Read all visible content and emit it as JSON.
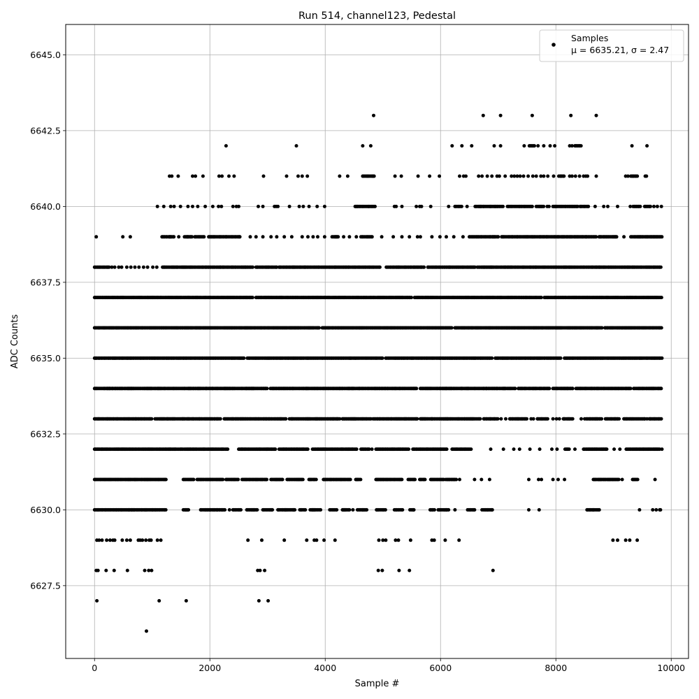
{
  "chart_data": {
    "type": "scatter",
    "title": "Run 514, channel123, Pedestal",
    "xlabel": "Sample #",
    "ylabel": "ADC Counts",
    "xlim": [
      -500,
      10300
    ],
    "ylim": [
      6625.1,
      6646.0
    ],
    "x_ticks": [
      0,
      2000,
      4000,
      6000,
      8000,
      10000
    ],
    "x_tick_labels": [
      "0",
      "2000",
      "4000",
      "6000",
      "8000",
      "10000"
    ],
    "y_ticks": [
      6627.5,
      6630.0,
      6632.5,
      6635.0,
      6637.5,
      6640.0,
      6642.5,
      6645.0
    ],
    "y_tick_labels": [
      "6627.5",
      "6630.0",
      "6632.5",
      "6635.0",
      "6637.5",
      "6640.0",
      "6642.5",
      "6645.0"
    ],
    "grid": true,
    "legend_position": "top-right",
    "n_samples": 9830,
    "series": [
      {
        "name": "Samples",
        "stats_label": "μ = 6635.21, σ = 2.47",
        "color": "#000000",
        "marker": "circle",
        "levels": [
          {
            "y": 6626,
            "x": [
              900
            ]
          },
          {
            "y": 6627,
            "x": [
              40,
              1120,
              1590,
              2850,
              3010
            ]
          },
          {
            "y": 6628,
            "x": [
              30,
              60,
              200,
              340,
              570,
              870,
              940,
              990,
              2830,
              2870,
              2950,
              4920,
              4990,
              5280,
              5460,
              6910
            ]
          },
          {
            "y": 6629,
            "x": [
              40,
              80,
              130,
              210,
              270,
              320,
              350,
              480,
              560,
              620,
              760,
              790,
              830,
              890,
              950,
              980,
              1090,
              1150,
              2660,
              2900,
              3290,
              3680,
              3810,
              3850,
              3980,
              4170,
              4930,
              5000,
              5050,
              5220,
              5270,
              5480,
              5850,
              5890,
              6080,
              6320,
              8990,
              9070,
              9210,
              9280,
              9410
            ]
          }
        ],
        "bands": [
          {
            "y": 6630,
            "ranges": [
              [
                0,
                1240
              ],
              [
                1540,
                1640
              ],
              [
                1840,
                2260
              ],
              [
                2400,
                2550
              ],
              [
                2640,
                2820
              ],
              [
                2920,
                3100
              ],
              [
                3180,
                3480
              ],
              [
                3560,
                3660
              ],
              [
                3740,
                3920
              ],
              [
                4080,
                4200
              ],
              [
                4300,
                4430
              ],
              [
                4560,
                4720
              ],
              [
                4890,
                5060
              ],
              [
                5200,
                5360
              ],
              [
                5470,
                5560
              ],
              [
                5820,
                5900
              ],
              [
                5960,
                6150
              ],
              [
                6470,
                6600
              ],
              [
                6720,
                6900
              ],
              [
                8540,
                8760
              ],
              [
                9800,
                9820
              ]
            ],
            "extra": [
              2340,
              4480,
              6250,
              7530,
              7710,
              9450,
              9680,
              9740
            ]
          },
          {
            "y": 6631,
            "ranges": [
              [
                0,
                1250
              ],
              [
                1540,
                1720
              ],
              [
                1780,
                2230
              ],
              [
                2280,
                2500
              ],
              [
                2560,
                3000
              ],
              [
                3060,
                3260
              ],
              [
                3340,
                3630
              ],
              [
                3720,
                3860
              ],
              [
                3970,
                4450
              ],
              [
                4530,
                4620
              ],
              [
                4880,
                5330
              ],
              [
                5440,
                5570
              ],
              [
                5640,
                5750
              ],
              [
                5830,
                6060
              ],
              [
                6090,
                6280
              ],
              [
                8650,
                9100
              ],
              [
                9330,
                9420
              ]
            ],
            "extra": [
              6330,
              6590,
              6710,
              6850,
              7530,
              7700,
              7750,
              7950,
              8040,
              8150,
              9150,
              9720
            ]
          },
          {
            "y": 6632,
            "ranges": [
              [
                0,
                2320
              ],
              [
                2500,
                3140
              ],
              [
                3200,
                3700
              ],
              [
                3780,
                4560
              ],
              [
                4620,
                4780
              ],
              [
                4880,
                5450
              ],
              [
                5520,
                6120
              ],
              [
                6200,
                6540
              ],
              [
                8160,
                8250
              ],
              [
                8480,
                8900
              ],
              [
                9220,
                9800
              ]
            ],
            "extra": [
              4810,
              6870,
              7090,
              7270,
              7370,
              7550,
              7720,
              7930,
              8020,
              8330,
              9010,
              9110,
              9840
            ]
          },
          {
            "y": 6633,
            "ranges": [
              [
                0,
                1000
              ],
              [
                1050,
                2200
              ],
              [
                2250,
                3320
              ],
              [
                3380,
                4260
              ],
              [
                4300,
                4800
              ],
              [
                4830,
                5600
              ],
              [
                5650,
                6700
              ],
              [
                6750,
                7000
              ],
              [
                7200,
                7500
              ],
              [
                7680,
                7870
              ],
              [
                8130,
                8300
              ],
              [
                8530,
                8800
              ],
              [
                8860,
                9100
              ],
              [
                9180,
                9550
              ],
              [
                9620,
                9840
              ]
            ],
            "extra": [
              7050,
              7130,
              7570,
              7610,
              7950,
              8010,
              8060,
              8440,
              8500,
              9580
            ]
          },
          {
            "y": 6634,
            "ranges": [
              [
                0,
                3000
              ],
              [
                3050,
                5600
              ],
              [
                5650,
                7300
              ],
              [
                7350,
                7900
              ],
              [
                7950,
                8300
              ],
              [
                8350,
                9300
              ],
              [
                9350,
                9840
              ]
            ],
            "extra": []
          },
          {
            "y": 6635,
            "ranges": [
              [
                0,
                2600
              ],
              [
                2650,
                5000
              ],
              [
                5050,
                6900
              ],
              [
                6950,
                8100
              ],
              [
                8150,
                9840
              ]
            ],
            "extra": []
          },
          {
            "y": 6636,
            "ranges": [
              [
                0,
                3900
              ],
              [
                3950,
                6200
              ],
              [
                6250,
                8800
              ],
              [
                8850,
                9840
              ]
            ],
            "extra": []
          },
          {
            "y": 6637,
            "ranges": [
              [
                0,
                2750
              ],
              [
                2800,
                5500
              ],
              [
                5550,
                7750
              ],
              [
                7800,
                9840
              ]
            ],
            "extra": []
          },
          {
            "y": 6638,
            "ranges": [
              [
                0,
                260
              ],
              [
                1180,
                2760
              ],
              [
                2800,
                3160
              ],
              [
                3200,
                4960
              ],
              [
                5060,
                5720
              ],
              [
                5780,
                6600
              ],
              [
                6640,
                9840
              ]
            ],
            "extra": [
              300,
              350,
              420,
              470,
              560,
              630,
              700,
              770,
              850,
              920,
              1010,
              1080
            ]
          },
          {
            "y": 6639,
            "ranges": [
              [
                1170,
                1380
              ],
              [
                1560,
                1700
              ],
              [
                1740,
                1900
              ],
              [
                1980,
                2540
              ],
              [
                4120,
                4240
              ],
              [
                4620,
                4820
              ],
              [
                6500,
                7000
              ],
              [
                7060,
                8700
              ],
              [
                8750,
                9070
              ],
              [
                9300,
                9840
              ]
            ],
            "extra": [
              30,
              490,
              620,
              1300,
              1460,
              1620,
              2700,
              2800,
              2920,
              3060,
              3160,
              3290,
              3420,
              3600,
              3700,
              3790,
              3870,
              3990,
              4320,
              4420,
              4540,
              4980,
              5180,
              5330,
              5460,
              5600,
              5650,
              5850,
              5990,
              6100,
              6230,
              6390,
              9180
            ]
          },
          {
            "y": 6640,
            "ranges": [
              [
                4520,
                4870
              ],
              [
                6250,
                6380
              ],
              [
                6600,
                7100
              ],
              [
                7160,
                7600
              ],
              [
                7660,
                7800
              ],
              [
                7950,
                8380
              ],
              [
                8420,
                8580
              ],
              [
                9340,
                9470
              ],
              [
                9540,
                9640
              ]
            ],
            "extra": [
              1090,
              1200,
              1320,
              1380,
              1490,
              1620,
              1700,
              1790,
              1920,
              2050,
              2150,
              2200,
              2400,
              2460,
              2500,
              2840,
              2920,
              3120,
              3150,
              3180,
              3380,
              3550,
              3620,
              3720,
              3860,
              3990,
              5200,
              5230,
              5330,
              5580,
              5640,
              5670,
              5830,
              6140,
              6460,
              6700,
              7850,
              7880,
              8680,
              8830,
              8900,
              9070,
              9290,
              9700,
              9760,
              9830
            ]
          },
          {
            "y": 6641,
            "ranges": [
              [
                4650,
                4850
              ],
              [
                8050,
                8150
              ],
              [
                9300,
                9420
              ]
            ],
            "extra": [
              1300,
              1340,
              1450,
              1700,
              1750,
              1880,
              2160,
              2210,
              2330,
              2420,
              2930,
              3330,
              3530,
              3600,
              3690,
              4250,
              4390,
              5210,
              5320,
              5610,
              5810,
              5980,
              6330,
              6400,
              6440,
              6660,
              6720,
              6810,
              6890,
              6980,
              7020,
              7120,
              7230,
              7280,
              7330,
              7380,
              7440,
              7520,
              7600,
              7660,
              7740,
              7790,
              7860,
              7960,
              8240,
              8280,
              8340,
              8410,
              8480,
              8520,
              8550,
              8700,
              9210,
              9250,
              9550,
              9570
            ]
          },
          {
            "y": 6642,
            "ranges": [
              [
                8330,
                8450
              ],
              [
                7540,
                7640
              ]
            ],
            "extra": [
              2280,
              3500,
              4650,
              4790,
              6200,
              6370,
              6540,
              6930,
              7040,
              7450,
              7690,
              7790,
              7900,
              7980,
              8240,
              8280,
              9320,
              9580
            ]
          },
          {
            "y": 6643,
            "ranges": [],
            "extra": [
              4840,
              6740,
              7040,
              7590,
              8260,
              8700
            ]
          }
        ]
      }
    ]
  }
}
